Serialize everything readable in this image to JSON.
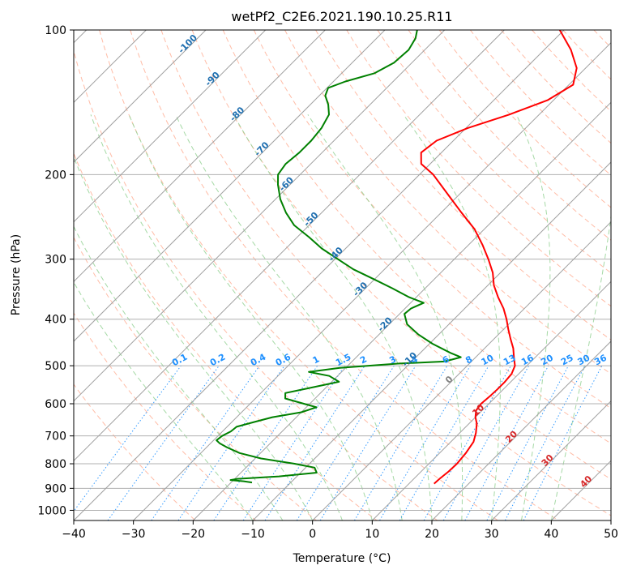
{
  "chart_data": {
    "type": "line",
    "subtype": "skew-t log-p diagram",
    "title": "wetPf2_C2E6.2021.190.10.25.R11",
    "xlabel": "Temperature (°C)",
    "ylabel": "Pressure (hPa)",
    "xlim": [
      -40,
      50
    ],
    "ylim": [
      1050,
      100
    ],
    "yscale": "log",
    "x_ticks": [
      -40,
      -30,
      -20,
      -10,
      0,
      10,
      20,
      30,
      40,
      50
    ],
    "x_tick_labels": [
      "−40",
      "−30",
      "−20",
      "−10",
      "0",
      "10",
      "20",
      "30",
      "40",
      "50"
    ],
    "y_ticks": [
      100,
      200,
      300,
      400,
      500,
      600,
      700,
      800,
      900,
      1000
    ],
    "y_tick_labels": [
      "100",
      "200",
      "300",
      "400",
      "500",
      "600",
      "700",
      "800",
      "900",
      "1000"
    ],
    "grid": true,
    "series": [
      {
        "role": "temperature",
        "color": "#ff0000",
        "points": [
          {
            "p": 880,
            "t": 14.2
          },
          {
            "p": 860,
            "t": 14.3
          },
          {
            "p": 830,
            "t": 14.6
          },
          {
            "p": 800,
            "t": 14.7
          },
          {
            "p": 760,
            "t": 14.4
          },
          {
            "p": 720,
            "t": 13.8
          },
          {
            "p": 690,
            "t": 12.7
          },
          {
            "p": 660,
            "t": 11.3
          },
          {
            "p": 640,
            "t": 10.0
          },
          {
            "p": 620,
            "t": 9.0
          },
          {
            "p": 600,
            "t": 8.7
          },
          {
            "p": 580,
            "t": 8.9
          },
          {
            "p": 560,
            "t": 9.0
          },
          {
            "p": 540,
            "t": 9.0
          },
          {
            "p": 520,
            "t": 8.8
          },
          {
            "p": 500,
            "t": 8.0
          },
          {
            "p": 480,
            "t": 6.4
          },
          {
            "p": 460,
            "t": 4.8
          },
          {
            "p": 440,
            "t": 2.8
          },
          {
            "p": 420,
            "t": 0.8
          },
          {
            "p": 400,
            "t": -1.2
          },
          {
            "p": 380,
            "t": -3.5
          },
          {
            "p": 360,
            "t": -6.3
          },
          {
            "p": 340,
            "t": -9.0
          },
          {
            "p": 320,
            "t": -11.3
          },
          {
            "p": 300,
            "t": -14.3
          },
          {
            "p": 280,
            "t": -17.7
          },
          {
            "p": 260,
            "t": -21.6
          },
          {
            "p": 240,
            "t": -26.6
          },
          {
            "p": 220,
            "t": -31.9
          },
          {
            "p": 200,
            "t": -37.7
          },
          {
            "p": 190,
            "t": -41.5
          },
          {
            "p": 180,
            "t": -43.4
          },
          {
            "p": 170,
            "t": -42.8
          },
          {
            "p": 160,
            "t": -39.7
          },
          {
            "p": 150,
            "t": -35.0
          },
          {
            "p": 140,
            "t": -31.0
          },
          {
            "p": 130,
            "t": -29.3
          },
          {
            "p": 120,
            "t": -31.5
          },
          {
            "p": 110,
            "t": -35.5
          },
          {
            "p": 100,
            "t": -40.7
          }
        ]
      },
      {
        "role": "dewpoint",
        "color": "#008000",
        "points": [
          {
            "p": 875,
            "t": -16.5
          },
          {
            "p": 870,
            "t": -18.1
          },
          {
            "p": 865,
            "t": -20.5
          },
          {
            "p": 860,
            "t": -19.5
          },
          {
            "p": 850,
            "t": -13.0
          },
          {
            "p": 835,
            "t": -7.3
          },
          {
            "p": 815,
            "t": -8.5
          },
          {
            "p": 800,
            "t": -12.5
          },
          {
            "p": 780,
            "t": -19.0
          },
          {
            "p": 760,
            "t": -23.5
          },
          {
            "p": 740,
            "t": -26.5
          },
          {
            "p": 725,
            "t": -28.5
          },
          {
            "p": 715,
            "t": -29.5
          },
          {
            "p": 700,
            "t": -29.3
          },
          {
            "p": 685,
            "t": -28.6
          },
          {
            "p": 670,
            "t": -28.4
          },
          {
            "p": 655,
            "t": -26.3
          },
          {
            "p": 640,
            "t": -24.0
          },
          {
            "p": 625,
            "t": -20.0
          },
          {
            "p": 610,
            "t": -18.3
          },
          {
            "p": 600,
            "t": -21.0
          },
          {
            "p": 585,
            "t": -25.0
          },
          {
            "p": 570,
            "t": -25.9
          },
          {
            "p": 555,
            "t": -22.4
          },
          {
            "p": 540,
            "t": -18.8
          },
          {
            "p": 525,
            "t": -21.4
          },
          {
            "p": 515,
            "t": -25.5
          },
          {
            "p": 505,
            "t": -21.0
          },
          {
            "p": 495,
            "t": -12.0
          },
          {
            "p": 490,
            "t": -4.5
          },
          {
            "p": 480,
            "t": -2.5
          },
          {
            "p": 470,
            "t": -5.0
          },
          {
            "p": 450,
            "t": -9.5
          },
          {
            "p": 430,
            "t": -13.5
          },
          {
            "p": 410,
            "t": -17.0
          },
          {
            "p": 390,
            "t": -19.2
          },
          {
            "p": 380,
            "t": -19.0
          },
          {
            "p": 370,
            "t": -17.8
          },
          {
            "p": 360,
            "t": -21.2
          },
          {
            "p": 345,
            "t": -25.5
          },
          {
            "p": 330,
            "t": -30.2
          },
          {
            "p": 315,
            "t": -35.2
          },
          {
            "p": 300,
            "t": -39.5
          },
          {
            "p": 285,
            "t": -44.0
          },
          {
            "p": 270,
            "t": -48.0
          },
          {
            "p": 255,
            "t": -52.5
          },
          {
            "p": 240,
            "t": -56.0
          },
          {
            "p": 225,
            "t": -59.2
          },
          {
            "p": 210,
            "t": -62.0
          },
          {
            "p": 200,
            "t": -63.7
          },
          {
            "p": 190,
            "t": -64.2
          },
          {
            "p": 180,
            "t": -63.8
          },
          {
            "p": 170,
            "t": -63.8
          },
          {
            "p": 160,
            "t": -64.2
          },
          {
            "p": 150,
            "t": -65.2
          },
          {
            "p": 143,
            "t": -67.0
          },
          {
            "p": 137,
            "t": -69.0
          },
          {
            "p": 132,
            "t": -69.8
          },
          {
            "p": 128,
            "t": -68.0
          },
          {
            "p": 123,
            "t": -64.5
          },
          {
            "p": 117,
            "t": -63.0
          },
          {
            "p": 110,
            "t": -62.7
          },
          {
            "p": 104,
            "t": -63.5
          },
          {
            "p": 100,
            "t": -64.6
          }
        ]
      }
    ],
    "background_lines": {
      "isotherms": {
        "step": 10,
        "color": "#a0a0a0"
      },
      "dry_adiabats": {
        "color": "#ff9f80"
      },
      "moist_adiabats": {
        "color": "#8fcf8f"
      },
      "mixing_ratio_lines": {
        "color": "#1e90ff"
      }
    },
    "mixing_ratio_labels": [
      "0.1",
      "0.2",
      "0.4",
      "0.6",
      "1",
      "1.5",
      "2",
      "3",
      "4",
      "6",
      "8",
      "10",
      "13",
      "16",
      "20",
      "25",
      "30",
      "36"
    ],
    "mixing_ratio_values": [
      0.1,
      0.2,
      0.4,
      0.6,
      1,
      1.5,
      2,
      3,
      4,
      6,
      8,
      10,
      13,
      16,
      20,
      25,
      30,
      36
    ],
    "isotherm_labels_blue": [
      "-100",
      "-90",
      "-80",
      "-70",
      "-60",
      "-50",
      "-40",
      "-30",
      "-20",
      "-10"
    ],
    "isotherm_values_blue": [
      -100,
      -90,
      -80,
      -70,
      -60,
      -50,
      -40,
      -30,
      -20,
      -10
    ],
    "isotherm_labels_red": [
      "0",
      "10",
      "20",
      "30",
      "40"
    ],
    "isotherm_values_red": [
      0,
      10,
      20,
      30,
      40
    ],
    "colors": {
      "temperature": "#ff0000",
      "dewpoint": "#008000",
      "mixing_ratio_label": "#1e90ff",
      "cold_isotherm_label": "#1f6fb0",
      "warm_isotherm_label": "#d62728",
      "zero_isotherm_label": "#808080"
    }
  }
}
